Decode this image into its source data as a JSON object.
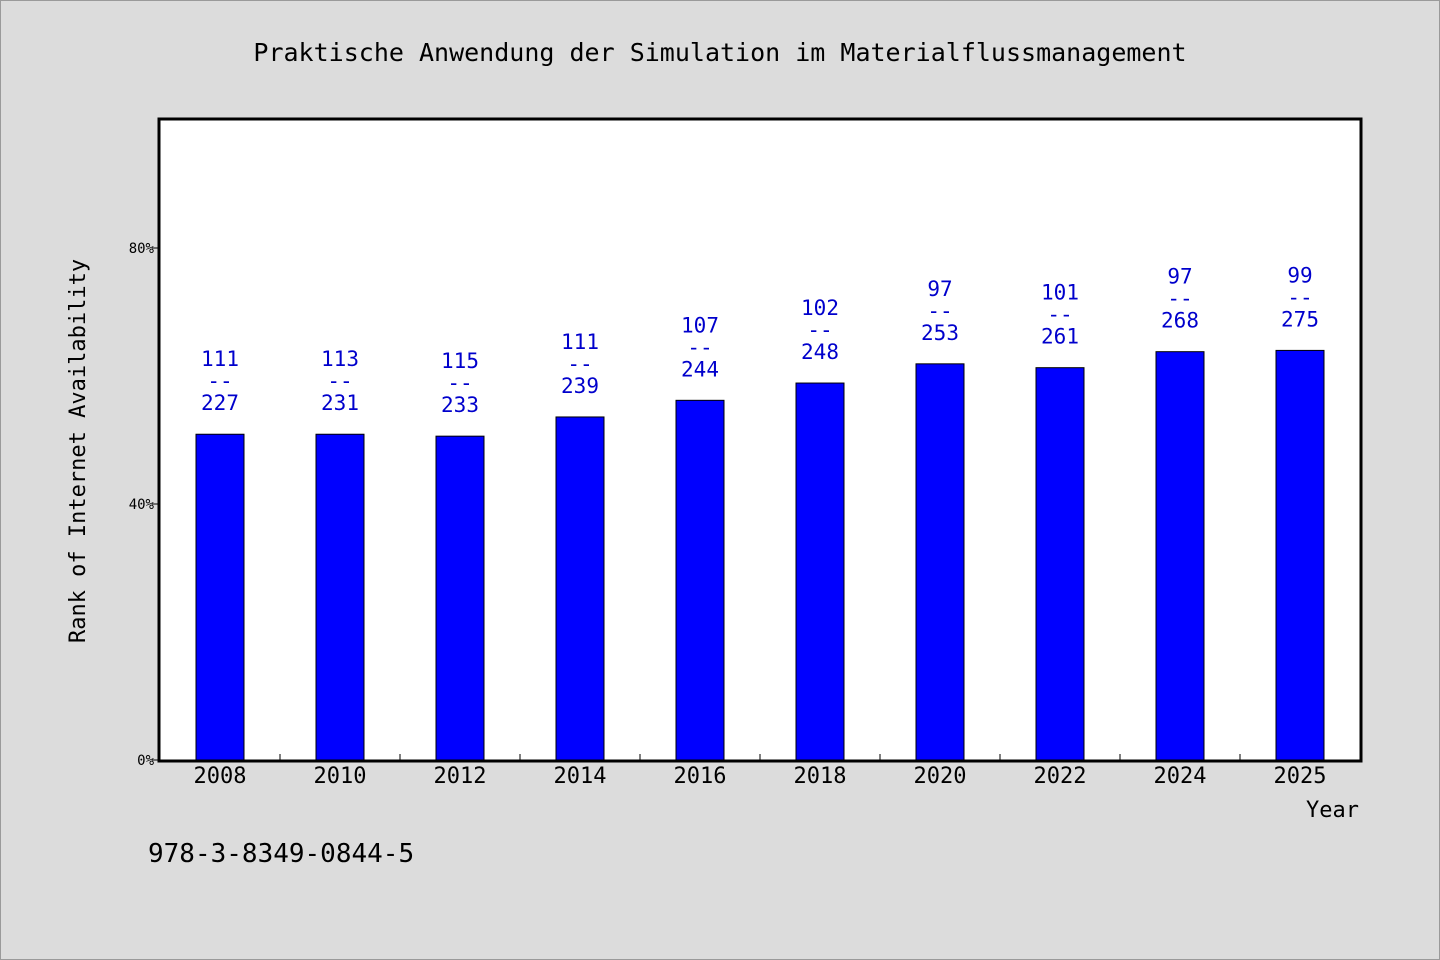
{
  "chart_data": {
    "type": "bar",
    "title": "Praktische Anwendung der Simulation im Materialflussmanagement",
    "xlabel": "Year",
    "ylabel": "Rank of Internet Availability",
    "categories": [
      "2008",
      "2010",
      "2012",
      "2014",
      "2016",
      "2018",
      "2020",
      "2022",
      "2024",
      "2025"
    ],
    "values": [
      50.9,
      50.9,
      50.6,
      53.6,
      56.2,
      58.9,
      61.9,
      61.3,
      63.8,
      64.0
    ],
    "value_unit": "%",
    "ylim": [
      0,
      100
    ],
    "yticks": [
      0,
      40,
      80
    ],
    "ytick_labels": [
      "0%",
      "40%",
      "80%"
    ],
    "bar_labels": [
      {
        "top": "111",
        "sep": "--",
        "bottom": "227"
      },
      {
        "top": "113",
        "sep": "--",
        "bottom": "231"
      },
      {
        "top": "115",
        "sep": "--",
        "bottom": "233"
      },
      {
        "top": "111",
        "sep": "--",
        "bottom": "239"
      },
      {
        "top": "107",
        "sep": "--",
        "bottom": "244"
      },
      {
        "top": "102",
        "sep": "--",
        "bottom": "248"
      },
      {
        "top": "97",
        "sep": "--",
        "bottom": "253"
      },
      {
        "top": "101",
        "sep": "--",
        "bottom": "261"
      },
      {
        "top": "97",
        "sep": "--",
        "bottom": "268"
      },
      {
        "top": "99",
        "sep": "--",
        "bottom": "275"
      }
    ],
    "grid": false,
    "legend": "none",
    "colors": {
      "bar": "#0000ff",
      "bar_label": "#0000cc",
      "plot_background": "#ffffff",
      "page_background": "#dcdcdc"
    }
  },
  "footer": {
    "isbn": "978-3-8349-0844-5"
  }
}
